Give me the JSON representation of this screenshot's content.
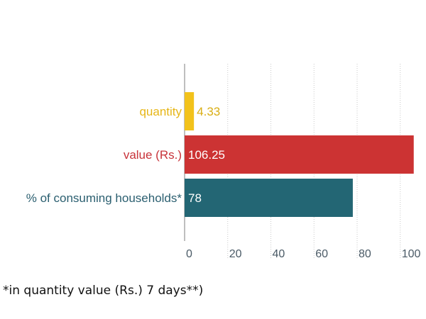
{
  "chart_data": {
    "type": "bar",
    "orientation": "horizontal",
    "categories": [
      "quantity",
      "value (Rs.)",
      "% of consuming households*"
    ],
    "values": [
      4.33,
      106.25,
      78
    ],
    "value_labels": [
      "4.33",
      "106.25",
      "78"
    ],
    "colors": [
      "#f2c21b",
      "#cc3333",
      "#236674"
    ],
    "label_colors": [
      "#e6b617",
      "#c8333a",
      "#2b5f70"
    ],
    "value_label_colors": [
      "#d9ae14",
      "#ffffff",
      "#ffffff"
    ],
    "xlim": [
      0,
      107
    ],
    "xticks": [
      0,
      20,
      40,
      60,
      80,
      100
    ],
    "xtick_labels": [
      "0",
      "20",
      "40",
      "60",
      "80",
      "100"
    ],
    "grid": true,
    "title": "",
    "xlabel": "",
    "ylabel": ""
  },
  "footnote": "*in quantity value (Rs.) 7 days**)"
}
